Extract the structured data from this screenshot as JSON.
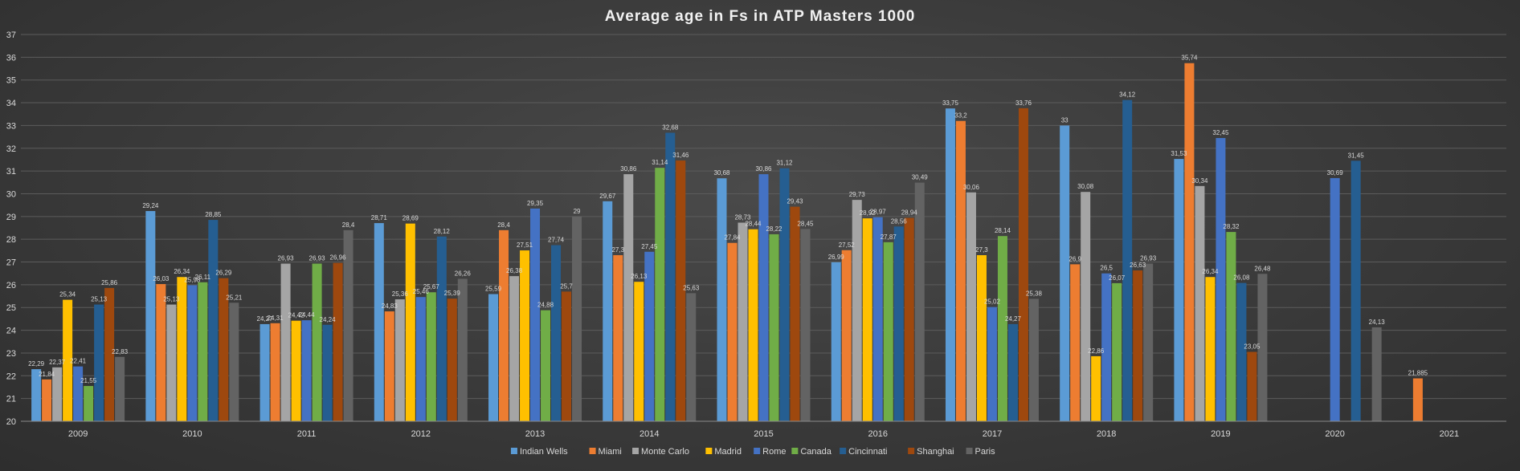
{
  "chart_data": {
    "type": "bar",
    "title": "Average age in Fs in ATP Masters 1000",
    "xlabel": "",
    "ylabel": "",
    "ylim": [
      20,
      37
    ],
    "yticks": [
      20,
      21,
      22,
      23,
      24,
      25,
      26,
      27,
      28,
      29,
      30,
      31,
      32,
      33,
      34,
      35,
      36,
      37
    ],
    "grid": true,
    "legend_position": "bottom",
    "categories": [
      "2009",
      "2010",
      "2011",
      "2012",
      "2013",
      "2014",
      "2015",
      "2016",
      "2017",
      "2018",
      "2019",
      "2020",
      "2021"
    ],
    "series": [
      {
        "name": "Indian Wells",
        "color": "#5b9bd5",
        "values": [
          22.29,
          29.24,
          24.27,
          28.71,
          25.59,
          29.67,
          30.68,
          26.99,
          33.75,
          33,
          31.53,
          null,
          null
        ],
        "labels": [
          "22,29",
          "29,24",
          "24,27",
          "28,71",
          "25,59",
          "29,67",
          "30,68",
          "26,99",
          "33,75",
          "33",
          "31,53",
          "",
          ""
        ]
      },
      {
        "name": "Miami",
        "color": "#ed7d31",
        "values": [
          21.84,
          26.03,
          24.31,
          24.83,
          28.4,
          27.3,
          27.84,
          27.52,
          33.2,
          26.9,
          35.74,
          null,
          21.885
        ],
        "labels": [
          "21,84",
          "26,03",
          "24,31",
          "24,83",
          "28,4",
          "27,3",
          "27,84",
          "27,52",
          "33,2",
          "26,9",
          "35,74",
          "",
          "21,885"
        ]
      },
      {
        "name": "Monte Carlo",
        "color": "#a5a5a5",
        "values": [
          22.37,
          25.13,
          26.93,
          25.36,
          26.38,
          30.86,
          28.73,
          29.73,
          30.06,
          30.08,
          30.34,
          null,
          null
        ],
        "labels": [
          "22,37",
          "25,13",
          "26,93",
          "25,36",
          "26,38",
          "30,86",
          "28,73",
          "29,73",
          "30,06",
          "30,08",
          "30,34",
          "",
          ""
        ]
      },
      {
        "name": "Madrid",
        "color": "#ffc000",
        "values": [
          25.34,
          26.34,
          24.42,
          28.69,
          27.51,
          26.13,
          28.44,
          28.92,
          27.3,
          22.86,
          26.34,
          null,
          null
        ],
        "labels": [
          "25,34",
          "26,34",
          "24,42",
          "28,69",
          "27,51",
          "26,13",
          "28,44",
          "28,92",
          "27,3",
          "22,86",
          "26,34",
          "",
          ""
        ]
      },
      {
        "name": "Rome",
        "color": "#4472c4",
        "values": [
          22.41,
          25.98,
          24.44,
          25.46,
          29.35,
          27.45,
          30.86,
          28.97,
          25.02,
          26.5,
          32.45,
          30.69,
          null
        ],
        "labels": [
          "22,41",
          "25,98",
          "24,44",
          "25,46",
          "29,35",
          "27,45",
          "30,86",
          "28,97",
          "25,02",
          "26,5",
          "32,45",
          "30,69",
          ""
        ]
      },
      {
        "name": "Canada",
        "color": "#70ad47",
        "values": [
          21.55,
          26.11,
          26.93,
          25.67,
          24.88,
          31.14,
          28.22,
          27.87,
          28.14,
          26.07,
          28.32,
          null,
          null
        ],
        "labels": [
          "21,55",
          "26,11",
          "26,93",
          "25,67",
          "24,88",
          "31,14",
          "28,22",
          "27,87",
          "28,14",
          "26,07",
          "28,32",
          "",
          ""
        ]
      },
      {
        "name": "Cincinnati",
        "color": "#255e91",
        "values": [
          25.13,
          28.85,
          24.24,
          28.12,
          27.74,
          32.68,
          31.12,
          28.56,
          24.27,
          34.12,
          26.08,
          31.45,
          null
        ],
        "labels": [
          "25,13",
          "28,85",
          "24,24",
          "28,12",
          "27,74",
          "32,68",
          "31,12",
          "28,56",
          "24,27",
          "34,12",
          "26,08",
          "31,45",
          ""
        ]
      },
      {
        "name": "Shanghai",
        "color": "#9e480e",
        "values": [
          25.86,
          26.29,
          26.96,
          25.39,
          25.7,
          31.46,
          29.43,
          28.94,
          33.76,
          26.63,
          23.05,
          null,
          null
        ],
        "labels": [
          "25,86",
          "26,29",
          "26,96",
          "25,39",
          "25,7",
          "31,46",
          "29,43",
          "28,94",
          "33,76",
          "26,63",
          "23,05",
          "",
          ""
        ]
      },
      {
        "name": "Paris",
        "color": "#636363",
        "values": [
          22.83,
          25.21,
          28.4,
          26.26,
          29,
          25.63,
          28.45,
          30.49,
          25.38,
          26.93,
          26.48,
          24.13,
          null
        ],
        "labels": [
          "22,83",
          "25,21",
          "28,4",
          "26,26",
          "29",
          "25,63",
          "28,45",
          "30,49",
          "25,38",
          "26,93",
          "26,48",
          "24,13",
          ""
        ]
      }
    ]
  }
}
